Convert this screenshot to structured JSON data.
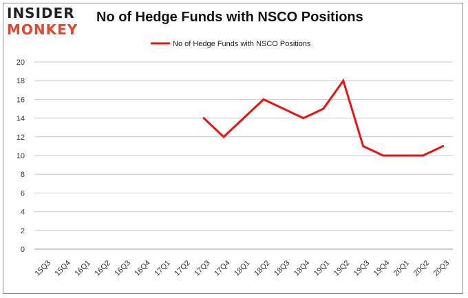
{
  "logo": {
    "line1": "INSIDER",
    "line2": "MONKEY"
  },
  "chart_data": {
    "type": "line",
    "title": "No of Hedge Funds with NSCO Positions",
    "xlabel": "",
    "ylabel": "",
    "categories": [
      "15Q3",
      "15Q4",
      "16Q1",
      "16Q2",
      "16Q3",
      "16Q4",
      "17Q1",
      "17Q2",
      "17Q3",
      "17Q4",
      "18Q1",
      "18Q2",
      "18Q3",
      "18Q4",
      "19Q1",
      "19Q2",
      "19Q3",
      "19Q4",
      "20Q1",
      "20Q2",
      "20Q3"
    ],
    "series": [
      {
        "name": "No of Hedge Funds with NSCO Positions",
        "color": "#ee1111",
        "values": [
          null,
          null,
          null,
          null,
          null,
          null,
          null,
          null,
          14,
          12,
          14,
          16,
          15,
          14,
          15,
          18,
          11,
          10,
          10,
          10,
          11
        ]
      }
    ],
    "ylim": [
      0,
      20
    ],
    "yticks": [
      0,
      2,
      4,
      6,
      8,
      10,
      12,
      14,
      16,
      18,
      20
    ],
    "grid": true,
    "legend": "top-center"
  }
}
